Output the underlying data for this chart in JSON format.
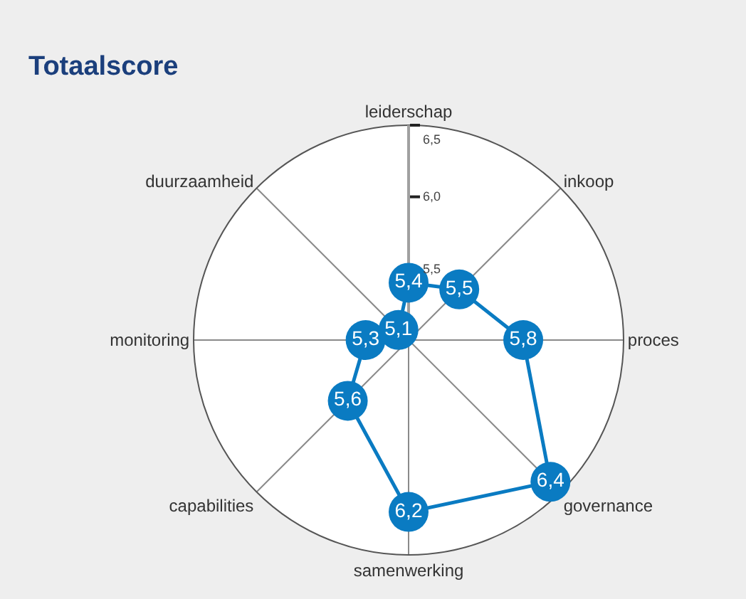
{
  "chart_data": {
    "type": "radar",
    "title": "Totaalscore",
    "categories": [
      "leiderschap",
      "inkoop",
      "proces",
      "governance",
      "samenwerking",
      "capabilities",
      "monitoring",
      "duurzaamheid"
    ],
    "series": [
      {
        "color": "#0a7bc2",
        "values": [
          5.4,
          5.5,
          5.8,
          6.4,
          6.2,
          5.6,
          5.3,
          5.1
        ],
        "value_labels": [
          "5,4",
          "5,5",
          "5,8",
          "6,4",
          "6,2",
          "5,6",
          "5,3",
          "5,1"
        ]
      }
    ],
    "ylim": [
      5.0,
      6.5
    ],
    "yticks": [
      {
        "value": 5.5,
        "label": "5,5"
      },
      {
        "value": 6.0,
        "label": "6,0"
      },
      {
        "value": 6.5,
        "label": "6,5"
      }
    ],
    "grid": "x",
    "marker": "circle"
  }
}
